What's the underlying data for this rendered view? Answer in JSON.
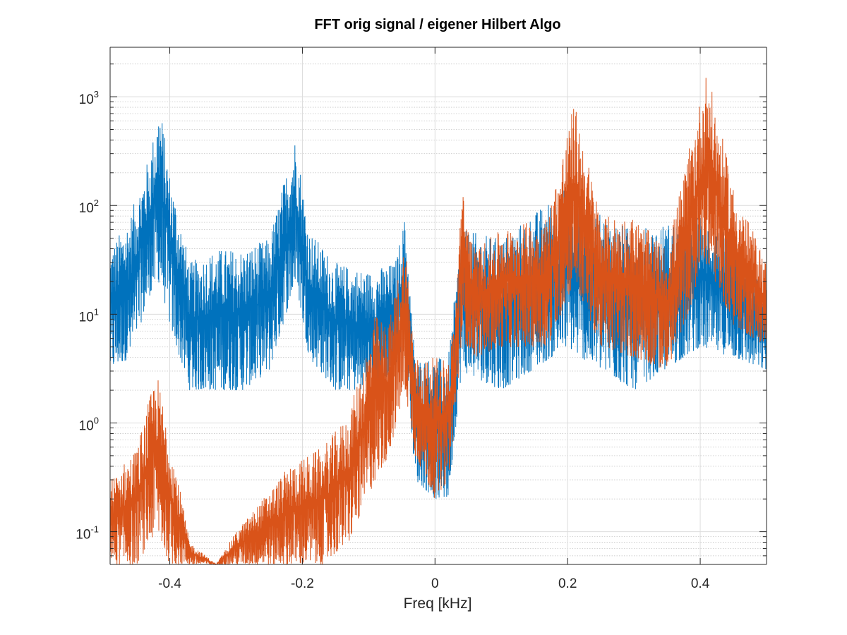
{
  "chart_data": {
    "type": "line",
    "title": "FFT orig signal / eigener Hilbert Algo",
    "xlabel": "Freq [kHz]",
    "ylabel": "",
    "yscale": "log",
    "xlim": [
      -0.49,
      0.5
    ],
    "ylim": [
      0.05,
      2850
    ],
    "grid": true,
    "minor_grid": true,
    "x_ticks": [
      {
        "value": -0.4,
        "label": "-0.4"
      },
      {
        "value": -0.2,
        "label": "-0.2"
      },
      {
        "value": 0,
        "label": "0"
      },
      {
        "value": 0.2,
        "label": "0.2"
      },
      {
        "value": 0.4,
        "label": "0.4"
      }
    ],
    "y_ticks": [
      {
        "value": 0.1,
        "base": "10",
        "exponent": "-1"
      },
      {
        "value": 1,
        "base": "10",
        "exponent": "0"
      },
      {
        "value": 10,
        "base": "10",
        "exponent": "1"
      },
      {
        "value": 100,
        "base": "10",
        "exponent": "2"
      },
      {
        "value": 1000,
        "base": "10",
        "exponent": "3"
      }
    ],
    "note": "dense noisy FFT magnitude spectra; each series given as an envelope (freq, upper, lower) from which samples are drawn",
    "series": [
      {
        "name": "orig signal",
        "color": "#0072BD",
        "envelope": [
          [
            -0.49,
            40,
            3
          ],
          [
            -0.46,
            80,
            4
          ],
          [
            -0.43,
            300,
            15
          ],
          [
            -0.415,
            900,
            20
          ],
          [
            -0.4,
            200,
            8
          ],
          [
            -0.37,
            30,
            2
          ],
          [
            -0.33,
            40,
            2
          ],
          [
            -0.29,
            40,
            2
          ],
          [
            -0.25,
            50,
            3
          ],
          [
            -0.21,
            450,
            20
          ],
          [
            -0.19,
            60,
            4
          ],
          [
            -0.15,
            30,
            2
          ],
          [
            -0.1,
            25,
            2
          ],
          [
            -0.06,
            30,
            3
          ],
          [
            -0.045,
            80,
            6
          ],
          [
            -0.03,
            4,
            0.3
          ],
          [
            0,
            4,
            0.2
          ],
          [
            0.02,
            4,
            0.2
          ],
          [
            0.04,
            60,
            3
          ],
          [
            0.1,
            50,
            2
          ],
          [
            0.2,
            150,
            5
          ],
          [
            0.22,
            100,
            4
          ],
          [
            0.3,
            60,
            2
          ],
          [
            0.4,
            80,
            5
          ],
          [
            0.45,
            50,
            4
          ],
          [
            0.5,
            15,
            3
          ]
        ]
      },
      {
        "name": "eigener Hilbert Algo",
        "color": "#D95319",
        "envelope": [
          [
            -0.49,
            0.3,
            0.05
          ],
          [
            -0.45,
            0.6,
            0.05
          ],
          [
            -0.42,
            3,
            0.1
          ],
          [
            -0.4,
            0.8,
            0.05
          ],
          [
            -0.37,
            0.08,
            0.05
          ],
          [
            -0.33,
            0.05,
            0.05
          ],
          [
            -0.3,
            0.1,
            0.05
          ],
          [
            -0.22,
            0.4,
            0.05
          ],
          [
            -0.17,
            0.6,
            0.05
          ],
          [
            -0.13,
            1.2,
            0.08
          ],
          [
            -0.09,
            10,
            0.3
          ],
          [
            -0.07,
            8,
            0.5
          ],
          [
            -0.045,
            50,
            2
          ],
          [
            -0.03,
            4,
            0.5
          ],
          [
            0,
            4,
            0.2
          ],
          [
            0.02,
            4,
            0.3
          ],
          [
            0.03,
            10,
            1
          ],
          [
            0.04,
            150,
            6
          ],
          [
            0.06,
            40,
            4
          ],
          [
            0.1,
            60,
            5
          ],
          [
            0.17,
            80,
            5
          ],
          [
            0.21,
            900,
            20
          ],
          [
            0.25,
            80,
            5
          ],
          [
            0.3,
            80,
            4
          ],
          [
            0.35,
            40,
            3
          ],
          [
            0.41,
            1800,
            30
          ],
          [
            0.45,
            150,
            8
          ],
          [
            0.5,
            30,
            5
          ]
        ]
      }
    ]
  },
  "colors": {
    "axis": "#262626",
    "major_grid": "#dcdcdc",
    "minor_grid": "#c8c8c8"
  }
}
